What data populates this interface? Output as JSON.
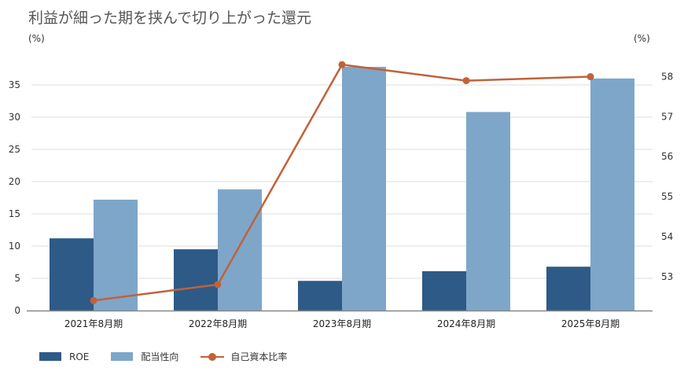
{
  "chart_data": {
    "type": "bar",
    "title": "利益が細った期を挟んで切り上がった還元",
    "left_unit": "(%)",
    "right_unit": "(%)",
    "categories": [
      "2021年8月期",
      "2022年8月期",
      "2023年8月期",
      "2024年8月期",
      "2025年8月期"
    ],
    "series": [
      {
        "name": "ROE",
        "type": "bar",
        "axis": "left",
        "color": "#2e5a87",
        "values": [
          11.2,
          9.5,
          4.6,
          6.1,
          6.8
        ]
      },
      {
        "name": "配当性向",
        "type": "bar",
        "axis": "left",
        "color": "#7ea6c9",
        "values": [
          17.2,
          18.8,
          37.8,
          30.8,
          36.0
        ]
      },
      {
        "name": "自己資本比率",
        "type": "line",
        "axis": "right",
        "color": "#c0623a",
        "values": [
          52.4,
          52.8,
          58.3,
          57.9,
          58.0
        ]
      }
    ],
    "y_left": {
      "min": 0,
      "max": 40,
      "ticks": [
        0,
        5,
        10,
        15,
        20,
        25,
        30,
        35
      ]
    },
    "y_right": {
      "min": 52.15,
      "max": 58.6,
      "ticks": [
        53,
        54,
        55,
        56,
        57,
        58
      ]
    },
    "grid": true,
    "legend_position": "bottom-left"
  }
}
